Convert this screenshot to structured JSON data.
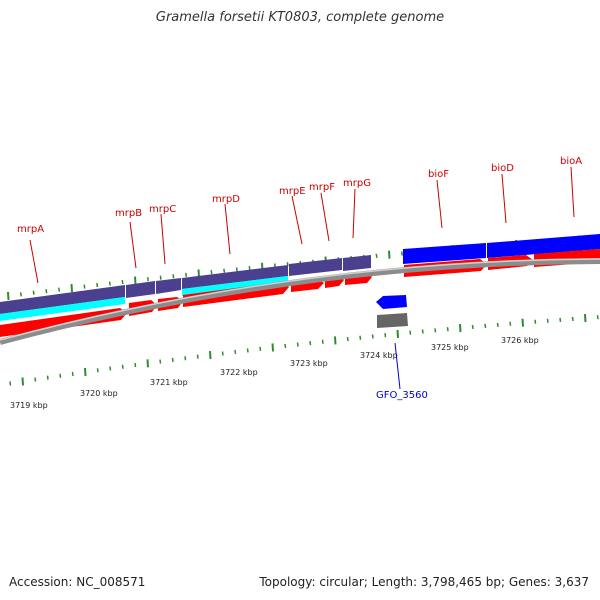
{
  "title": "Gramella forsetii KT0803, complete genome",
  "footer": {
    "accession": "Accession: NC_008571",
    "summary": "Topology: circular; Length: 3,798,465 bp; Genes: 3,637"
  },
  "colors": {
    "backbone": "#8c8c8c",
    "tick": "#2e8b2e",
    "forward_cds": "#ff0000",
    "reverse_cds": "#0000ff",
    "cyan_track": "#00ffff",
    "purple_track": "#4b3f8f",
    "gene_label": "#cc0000",
    "highlight_label": "#0000cc",
    "gray_feature": "#666666"
  },
  "axis_labels": [
    "3719 kbp",
    "3720 kbp",
    "3721 kbp",
    "3722 kbp",
    "3723 kbp",
    "3724 kbp",
    "3725 kbp",
    "3726 kbp"
  ],
  "gene_labels": [
    "mrpA",
    "mrpB",
    "mrpC",
    "mrpD",
    "mrpE",
    "mrpF",
    "mrpG",
    "bioF",
    "bioD",
    "bioA"
  ],
  "highlight_label": "GFO_3560"
}
